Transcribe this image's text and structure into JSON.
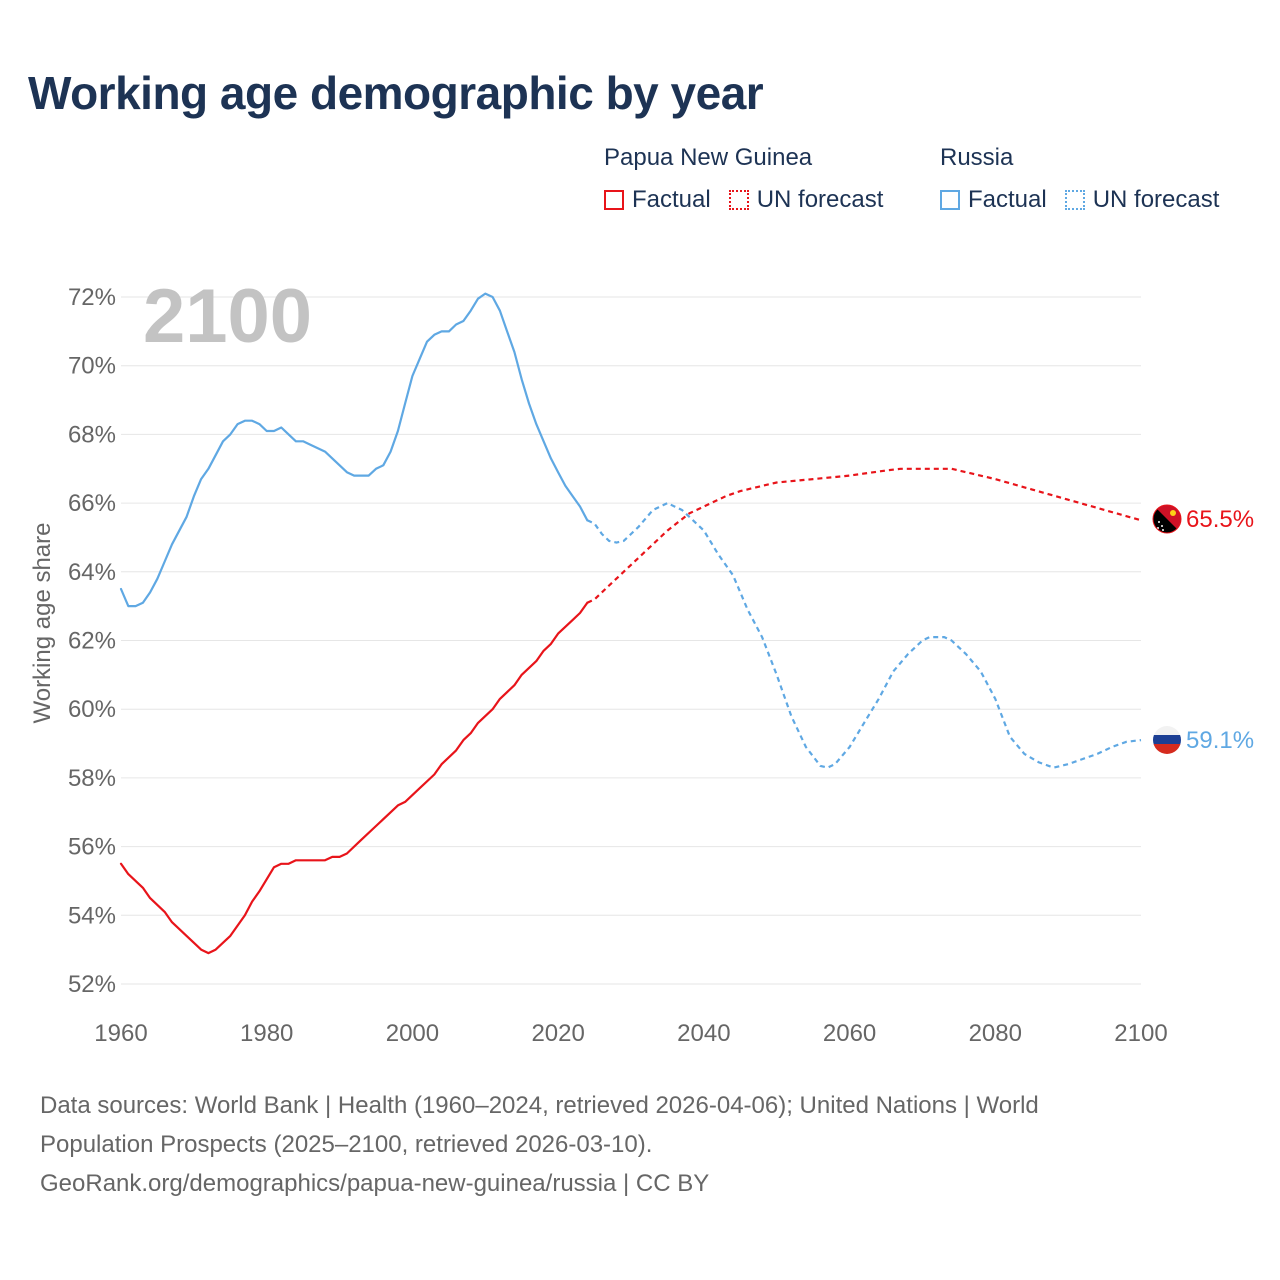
{
  "title": "Working age demographic by year",
  "legend": {
    "groups": [
      {
        "name": "Papua New Guinea",
        "color": "#e8141a",
        "factual_label": "Factual",
        "forecast_label": "UN forecast"
      },
      {
        "name": "Russia",
        "color": "#5fa8e3",
        "factual_label": "Factual",
        "forecast_label": "UN forecast"
      }
    ]
  },
  "year_watermark": "2100",
  "end_labels": {
    "png": "65.5%",
    "russia": "59.1%"
  },
  "footer": {
    "line1": "Data sources: World Bank | Health (1960–2024, retrieved 2026-04-06); United Nations | World",
    "line2": "Population Prospects (2025–2100, retrieved 2026-03-10).",
    "line3": "GeoRank.org/demographics/papua-new-guinea/russia | CC BY"
  },
  "chart_data": {
    "type": "line",
    "title": "Working age demographic by year",
    "xlabel": "",
    "ylabel": "Working age share",
    "xlim": [
      1960,
      2100
    ],
    "ylim": [
      52,
      72
    ],
    "x_ticks": [
      1960,
      1980,
      2000,
      2020,
      2040,
      2060,
      2080,
      2100
    ],
    "y_ticks": [
      "52%",
      "54%",
      "56%",
      "58%",
      "60%",
      "62%",
      "64%",
      "66%",
      "68%",
      "70%",
      "72%"
    ],
    "y_tick_values": [
      52,
      54,
      56,
      58,
      60,
      62,
      64,
      66,
      68,
      70,
      72
    ],
    "grid": true,
    "series": [
      {
        "name": "Papua New Guinea",
        "color": "#e8141a",
        "factual": [
          [
            1960,
            55.5
          ],
          [
            1961,
            55.2
          ],
          [
            1963,
            54.8
          ],
          [
            1964,
            54.5
          ],
          [
            1966,
            54.1
          ],
          [
            1967,
            53.8
          ],
          [
            1969,
            53.4
          ],
          [
            1971,
            53.0
          ],
          [
            1972,
            52.9
          ],
          [
            1973,
            53.0
          ],
          [
            1975,
            53.4
          ],
          [
            1977,
            54.0
          ],
          [
            1978,
            54.4
          ],
          [
            1979,
            54.7
          ],
          [
            1981,
            55.4
          ],
          [
            1982,
            55.5
          ],
          [
            1983,
            55.5
          ],
          [
            1984,
            55.6
          ],
          [
            1986,
            55.6
          ],
          [
            1988,
            55.6
          ],
          [
            1989,
            55.7
          ],
          [
            1990,
            55.7
          ],
          [
            1991,
            55.8
          ],
          [
            1993,
            56.2
          ],
          [
            1995,
            56.6
          ],
          [
            1997,
            57.0
          ],
          [
            1998,
            57.2
          ],
          [
            1999,
            57.3
          ],
          [
            2001,
            57.7
          ],
          [
            2003,
            58.1
          ],
          [
            2004,
            58.4
          ],
          [
            2006,
            58.8
          ],
          [
            2007,
            59.1
          ],
          [
            2008,
            59.3
          ],
          [
            2009,
            59.6
          ],
          [
            2011,
            60.0
          ],
          [
            2012,
            60.3
          ],
          [
            2014,
            60.7
          ],
          [
            2015,
            61.0
          ],
          [
            2017,
            61.4
          ],
          [
            2018,
            61.7
          ],
          [
            2019,
            61.9
          ],
          [
            2020,
            62.2
          ],
          [
            2022,
            62.6
          ],
          [
            2023,
            62.8
          ],
          [
            2024,
            63.1
          ]
        ],
        "forecast": [
          [
            2024,
            63.1
          ],
          [
            2025,
            63.2
          ],
          [
            2027,
            63.6
          ],
          [
            2030,
            64.2
          ],
          [
            2033,
            64.8
          ],
          [
            2035,
            65.2
          ],
          [
            2038,
            65.7
          ],
          [
            2040,
            65.9
          ],
          [
            2043,
            66.2
          ],
          [
            2045,
            66.35
          ],
          [
            2048,
            66.5
          ],
          [
            2050,
            66.6
          ],
          [
            2055,
            66.7
          ],
          [
            2060,
            66.8
          ],
          [
            2065,
            66.95
          ],
          [
            2067,
            67.0
          ],
          [
            2070,
            67.0
          ],
          [
            2074,
            67.0
          ],
          [
            2076,
            66.9
          ],
          [
            2080,
            66.7
          ],
          [
            2085,
            66.4
          ],
          [
            2090,
            66.1
          ],
          [
            2095,
            65.8
          ],
          [
            2100,
            65.5
          ]
        ]
      },
      {
        "name": "Russia",
        "color": "#5fa8e3",
        "factual": [
          [
            1960,
            63.5
          ],
          [
            1961,
            63.0
          ],
          [
            1962,
            63.0
          ],
          [
            1963,
            63.1
          ],
          [
            1964,
            63.4
          ],
          [
            1965,
            63.8
          ],
          [
            1966,
            64.3
          ],
          [
            1967,
            64.8
          ],
          [
            1969,
            65.6
          ],
          [
            1970,
            66.2
          ],
          [
            1971,
            66.7
          ],
          [
            1972,
            67.0
          ],
          [
            1974,
            67.8
          ],
          [
            1975,
            68.0
          ],
          [
            1976,
            68.3
          ],
          [
            1977,
            68.4
          ],
          [
            1978,
            68.4
          ],
          [
            1979,
            68.3
          ],
          [
            1980,
            68.1
          ],
          [
            1981,
            68.1
          ],
          [
            1982,
            68.2
          ],
          [
            1983,
            68.0
          ],
          [
            1984,
            67.8
          ],
          [
            1985,
            67.8
          ],
          [
            1986,
            67.7
          ],
          [
            1988,
            67.5
          ],
          [
            1989,
            67.3
          ],
          [
            1990,
            67.1
          ],
          [
            1991,
            66.9
          ],
          [
            1992,
            66.8
          ],
          [
            1994,
            66.8
          ],
          [
            1995,
            67.0
          ],
          [
            1996,
            67.1
          ],
          [
            1997,
            67.5
          ],
          [
            1998,
            68.1
          ],
          [
            1999,
            68.9
          ],
          [
            2000,
            69.7
          ],
          [
            2001,
            70.2
          ],
          [
            2002,
            70.7
          ],
          [
            2003,
            70.9
          ],
          [
            2004,
            71.0
          ],
          [
            2005,
            71.0
          ],
          [
            2006,
            71.2
          ],
          [
            2007,
            71.3
          ],
          [
            2008,
            71.6
          ],
          [
            2009,
            71.95
          ],
          [
            2010,
            72.1
          ],
          [
            2011,
            72.0
          ],
          [
            2012,
            71.6
          ],
          [
            2013,
            71.0
          ],
          [
            2014,
            70.4
          ],
          [
            2015,
            69.6
          ],
          [
            2016,
            68.9
          ],
          [
            2017,
            68.3
          ],
          [
            2018,
            67.8
          ],
          [
            2019,
            67.3
          ],
          [
            2020,
            66.9
          ],
          [
            2021,
            66.5
          ],
          [
            2022,
            66.2
          ],
          [
            2023,
            65.9
          ],
          [
            2024,
            65.5
          ]
        ],
        "forecast": [
          [
            2024,
            65.5
          ],
          [
            2025,
            65.4
          ],
          [
            2026,
            65.1
          ],
          [
            2027,
            64.9
          ],
          [
            2028,
            64.85
          ],
          [
            2029,
            64.9
          ],
          [
            2030,
            65.1
          ],
          [
            2031,
            65.3
          ],
          [
            2033,
            65.8
          ],
          [
            2035,
            66.0
          ],
          [
            2037,
            65.8
          ],
          [
            2038,
            65.6
          ],
          [
            2040,
            65.2
          ],
          [
            2042,
            64.5
          ],
          [
            2044,
            63.9
          ],
          [
            2046,
            62.9
          ],
          [
            2048,
            62.1
          ],
          [
            2050,
            61.0
          ],
          [
            2052,
            59.8
          ],
          [
            2054,
            58.9
          ],
          [
            2056,
            58.35
          ],
          [
            2057,
            58.3
          ],
          [
            2058,
            58.4
          ],
          [
            2060,
            58.9
          ],
          [
            2062,
            59.6
          ],
          [
            2064,
            60.3
          ],
          [
            2066,
            61.1
          ],
          [
            2068,
            61.6
          ],
          [
            2070,
            62.0
          ],
          [
            2071,
            62.1
          ],
          [
            2073,
            62.1
          ],
          [
            2074,
            62.0
          ],
          [
            2076,
            61.6
          ],
          [
            2078,
            61.1
          ],
          [
            2080,
            60.3
          ],
          [
            2082,
            59.2
          ],
          [
            2084,
            58.7
          ],
          [
            2086,
            58.45
          ],
          [
            2088,
            58.3
          ],
          [
            2090,
            58.4
          ],
          [
            2092,
            58.55
          ],
          [
            2094,
            58.7
          ],
          [
            2096,
            58.9
          ],
          [
            2098,
            59.05
          ],
          [
            2100,
            59.1
          ]
        ]
      }
    ]
  }
}
